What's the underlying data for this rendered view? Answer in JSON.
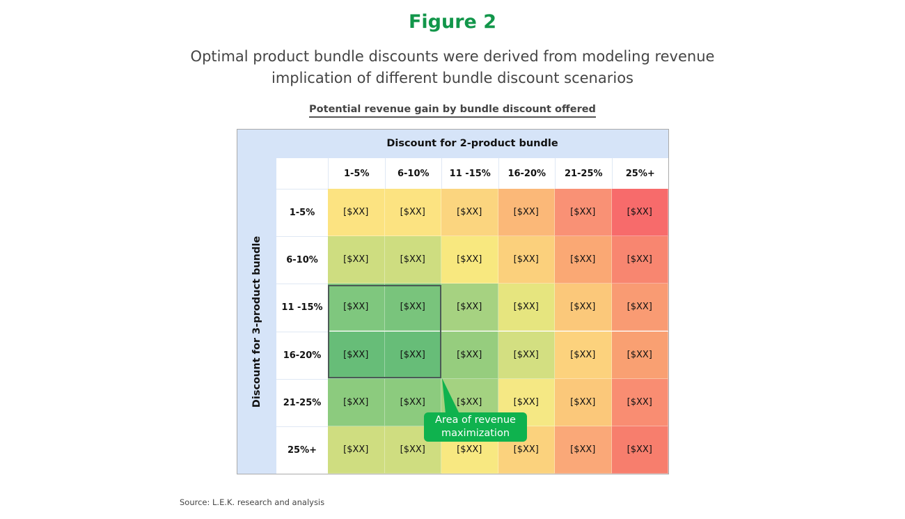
{
  "figure_label": "Figure 2",
  "subtitle_lines": [
    "Optimal product bundle discounts were derived from modeling revenue",
    "implication of different bundle discount scenarios"
  ],
  "source": "Source: L.E.K. research and analysis",
  "chart_data": {
    "type": "heatmap",
    "title": "Potential revenue gain by bundle discount offered",
    "xlabel": "Discount for 2-product bundle",
    "ylabel": "Discount for 3-product bundle",
    "columns": [
      "1-5%",
      "6-10%",
      "11 -15%",
      "16-20%",
      "21-25%",
      "25%+"
    ],
    "rows": [
      "1-5%",
      "6-10%",
      "11 -15%",
      "16-20%",
      "21-25%",
      "25%+"
    ],
    "values": [
      [
        "[$XX]",
        "[$XX]",
        "[$XX]",
        "[$XX]",
        "[$XX]",
        "[$XX]"
      ],
      [
        "[$XX]",
        "[$XX]",
        "[$XX]",
        "[$XX]",
        "[$XX]",
        "[$XX]"
      ],
      [
        "[$XX]",
        "[$XX]",
        "[$XX]",
        "[$XX]",
        "[$XX]",
        "[$XX]"
      ],
      [
        "[$XX]",
        "[$XX]",
        "[$XX]",
        "[$XX]",
        "[$XX]",
        "[$XX]"
      ],
      [
        "[$XX]",
        "[$XX]",
        "[$XX]",
        "[$XX]",
        "[$XX]",
        "[$XX]"
      ],
      [
        "[$XX]",
        "[$XX]",
        "[$XX]",
        "[$XX]",
        "[$XX]",
        "[$XX]"
      ]
    ],
    "colors": [
      [
        "#fce381",
        "#fce381",
        "#fbd57f",
        "#fbb878",
        "#f99175",
        "#f76b6b"
      ],
      [
        "#cedd80",
        "#cedd80",
        "#f8e87f",
        "#fbd07c",
        "#faa874",
        "#f88670"
      ],
      [
        "#7fc77e",
        "#79c47c",
        "#a6d281",
        "#e6e57f",
        "#fbc87a",
        "#f99b73"
      ],
      [
        "#67bd78",
        "#67bd78",
        "#96cd7e",
        "#d3df81",
        "#fcd27d",
        "#f9a072"
      ],
      [
        "#8ccb7e",
        "#8ccb7e",
        "#a4d281",
        "#f5e884",
        "#fbc87a",
        "#f98d72"
      ],
      [
        "#cfdd80",
        "#cfdd80",
        "#f8e881",
        "#fbd27d",
        "#faa878",
        "#f77e6d"
      ]
    ],
    "highlight": {
      "rows": [
        "11 -15%",
        "16-20%"
      ],
      "columns": [
        "1-5%",
        "6-10%"
      ],
      "label": "Area of revenue maximization"
    },
    "accent_color": "#0fb24e"
  }
}
